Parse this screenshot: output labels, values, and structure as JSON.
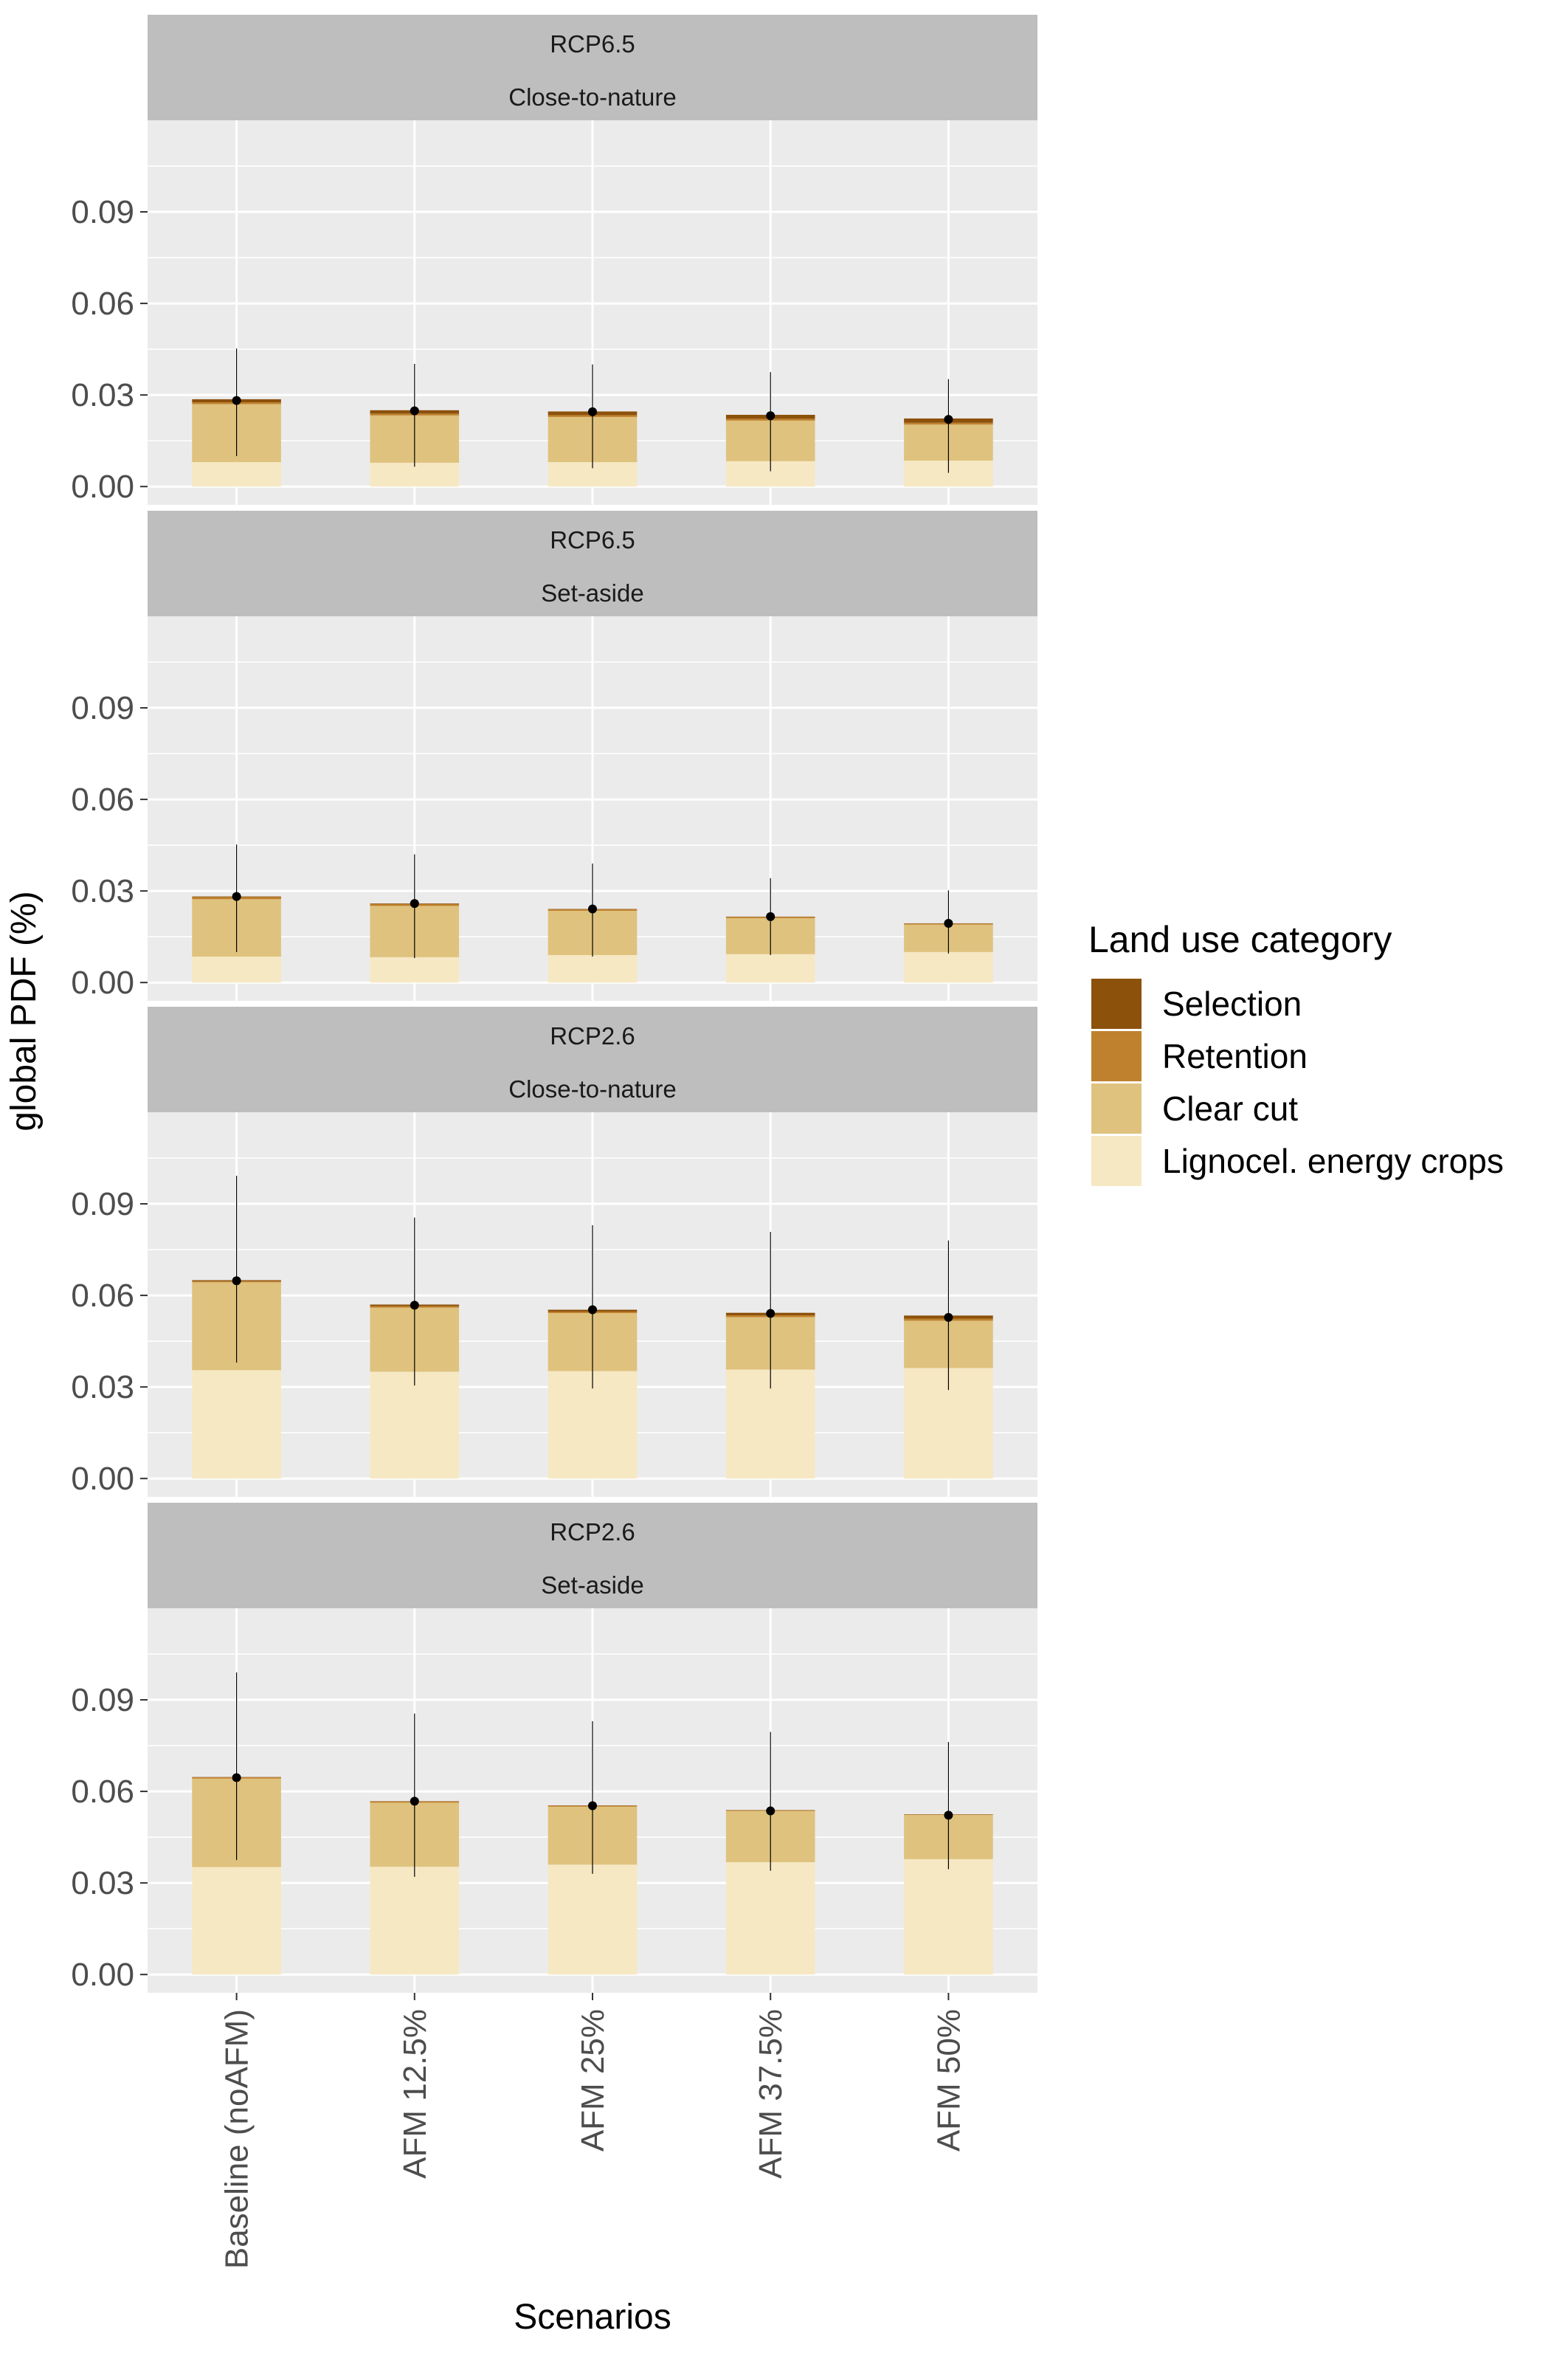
{
  "chart_data": {
    "type": "bar",
    "subtype": "stacked bar with error bars, faceted",
    "xlabel": "Scenarios",
    "ylabel": "global PDF (%)",
    "ylim": [
      -0.006,
      0.12
    ],
    "yticks": [
      "0.00",
      "0.03",
      "0.06",
      "0.09"
    ],
    "ytick_values": [
      0,
      0.03,
      0.06,
      0.09
    ],
    "categories": [
      "Baseline (noAFM)",
      "AFM 12.5%",
      "AFM 25%",
      "AFM 37.5%",
      "AFM 50%"
    ],
    "grid": true,
    "legend": {
      "title": "Land use category",
      "position": "right",
      "entries": [
        {
          "name": "Selection",
          "color": "#8c510a"
        },
        {
          "name": "Retention",
          "color": "#bf812d"
        },
        {
          "name": "Clear cut",
          "color": "#dfc27d"
        },
        {
          "name": "Lignocel. energy crops",
          "color": "#f6e8c3"
        }
      ]
    },
    "stack_order_bottom_to_top": [
      "Lignocel. energy crops",
      "Clear cut",
      "Retention",
      "Selection"
    ],
    "panels": [
      {
        "strip": [
          "RCP6.5",
          "Close-to-nature"
        ],
        "series": [
          {
            "name": "Lignocel. energy crops",
            "values": [
              0.008,
              0.0078,
              0.008,
              0.0083,
              0.0085
            ]
          },
          {
            "name": "Clear cut",
            "values": [
              0.019,
              0.0155,
              0.0148,
              0.0133,
              0.0118
            ]
          },
          {
            "name": "Retention",
            "values": [
              0.0006,
              0.0006,
              0.0006,
              0.0006,
              0.0006
            ]
          },
          {
            "name": "Selection",
            "values": [
              0.001,
              0.0011,
              0.0012,
              0.0013,
              0.0014
            ]
          }
        ],
        "mean": [
          0.0282,
          0.0248,
          0.0245,
          0.0232,
          0.022
        ],
        "error_low": [
          0.01,
          0.0065,
          0.006,
          0.005,
          0.0045
        ],
        "error_high": [
          0.0452,
          0.0402,
          0.04,
          0.0375,
          0.0352
        ]
      },
      {
        "strip": [
          "RCP6.5",
          "Set-aside"
        ],
        "series": [
          {
            "name": "Lignocel. energy crops",
            "values": [
              0.0085,
              0.0083,
              0.009,
              0.0093,
              0.01
            ]
          },
          {
            "name": "Clear cut",
            "values": [
              0.0188,
              0.0168,
              0.0145,
              0.0118,
              0.009
            ]
          },
          {
            "name": "Retention",
            "values": [
              0.0007,
              0.0006,
              0.0005,
              0.0004,
              0.0003
            ]
          },
          {
            "name": "Selection",
            "values": [
              0.0002,
              0.0002,
              0.0001,
              0.0001,
              0.0001
            ]
          }
        ],
        "mean": [
          0.0282,
          0.0259,
          0.0241,
          0.0216,
          0.0194
        ],
        "error_low": [
          0.01,
          0.008,
          0.0085,
          0.009,
          0.0095
        ],
        "error_high": [
          0.0452,
          0.042,
          0.039,
          0.0342,
          0.0302
        ]
      },
      {
        "strip": [
          "RCP2.6",
          "Close-to-nature"
        ],
        "series": [
          {
            "name": "Lignocel. energy crops",
            "values": [
              0.0355,
              0.035,
              0.0352,
              0.0357,
              0.0362
            ]
          },
          {
            "name": "Clear cut",
            "values": [
              0.0288,
              0.021,
              0.019,
              0.0172,
              0.0155
            ]
          },
          {
            "name": "Retention",
            "values": [
              0.0004,
              0.0005,
              0.0005,
              0.0006,
              0.0007
            ]
          },
          {
            "name": "Selection",
            "values": [
              0.0003,
              0.0005,
              0.0006,
              0.0008,
              0.001
            ]
          }
        ],
        "mean": [
          0.0648,
          0.0568,
          0.0553,
          0.0541,
          0.0528
        ],
        "error_low": [
          0.038,
          0.0305,
          0.0295,
          0.0295,
          0.029
        ],
        "error_high": [
          0.0992,
          0.0855,
          0.083,
          0.0808,
          0.078
        ]
      },
      {
        "strip": [
          "RCP2.6",
          "Set-aside"
        ],
        "series": [
          {
            "name": "Lignocel. energy crops",
            "values": [
              0.0352,
              0.0353,
              0.036,
              0.0368,
              0.0378
            ]
          },
          {
            "name": "Clear cut",
            "values": [
              0.029,
              0.021,
              0.019,
              0.0168,
              0.0145
            ]
          },
          {
            "name": "Retention",
            "values": [
              0.0004,
              0.0004,
              0.0003,
              0.0002,
              0.0001
            ]
          },
          {
            "name": "Selection",
            "values": [
              0.0001,
              0.0001,
              0.0001,
              0.0001,
              0.0001
            ]
          }
        ],
        "mean": [
          0.0645,
          0.0568,
          0.0553,
          0.0536,
          0.0522
        ],
        "error_low": [
          0.0375,
          0.032,
          0.033,
          0.034,
          0.0345
        ],
        "error_high": [
          0.099,
          0.0855,
          0.083,
          0.0795,
          0.0762
        ]
      }
    ]
  }
}
